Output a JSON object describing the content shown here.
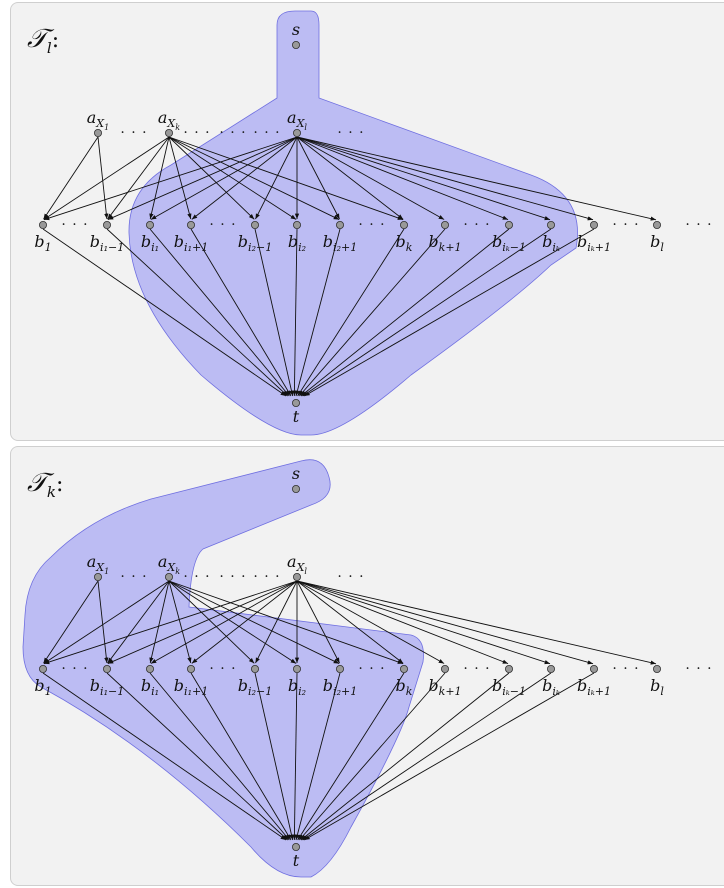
{
  "panels": [
    {
      "title": "𝒯",
      "title_sub": "l",
      "title_suffix": ":",
      "highlight_color": "#8f8ff4"
    },
    {
      "title": "𝒯",
      "title_sub": "k",
      "title_suffix": ":",
      "highlight_color": "#8f8ff4"
    }
  ],
  "nodes": {
    "source": "s",
    "sink": "t",
    "top_row": [
      {
        "base": "a",
        "sub": "X",
        "subsub": "1"
      },
      {
        "base": "a",
        "sub": "X",
        "subsub": "k"
      },
      {
        "base": "a",
        "sub": "X",
        "subsub": "l"
      }
    ],
    "bottom_row": [
      {
        "base": "b",
        "sub": "1"
      },
      {
        "base": "b",
        "sub": "i₁−1"
      },
      {
        "base": "b",
        "sub": "i₁"
      },
      {
        "base": "b",
        "sub": "i₁+1"
      },
      {
        "base": "b",
        "sub": "i₂−1"
      },
      {
        "base": "b",
        "sub": "i₂"
      },
      {
        "base": "b",
        "sub": "i₂+1"
      },
      {
        "base": "b",
        "sub": "k"
      },
      {
        "base": "b",
        "sub": "k+1"
      },
      {
        "base": "b",
        "sub": "iₖ−1"
      },
      {
        "base": "b",
        "sub": "iₖ"
      },
      {
        "base": "b",
        "sub": "iₖ+1"
      },
      {
        "base": "b",
        "sub": "l"
      }
    ],
    "ellipsis": "· · ·"
  },
  "colors": {
    "node_fill": "#999999",
    "node_stroke": "#333333",
    "edge": "#111111",
    "highlight": "#8f8ff4"
  }
}
